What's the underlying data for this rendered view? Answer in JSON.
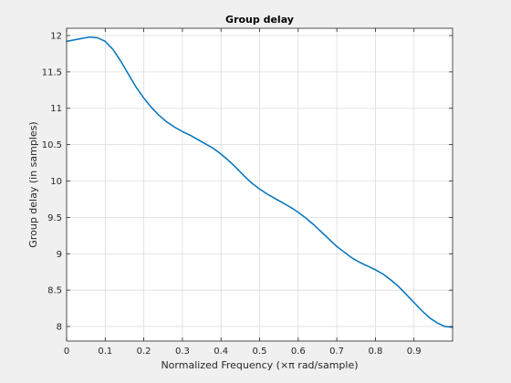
{
  "chart_data": {
    "type": "line",
    "title": "Group delay",
    "xlabel_prefix": "Normalized Frequency  (",
    "xlabel_symbol": "×π",
    "xlabel_suffix": " rad/sample)",
    "ylabel": "Group delay (in samples)",
    "xlim": [
      0,
      1
    ],
    "ylim": [
      7.8,
      12.1
    ],
    "xticks": [
      0,
      0.1,
      0.2,
      0.3,
      0.4,
      0.5,
      0.6,
      0.7,
      0.8,
      0.9
    ],
    "xtick_labels": [
      "0",
      "0.1",
      "0.2",
      "0.3",
      "0.4",
      "0.5",
      "0.6",
      "0.7",
      "0.8",
      "0.9"
    ],
    "yticks": [
      8,
      8.5,
      9,
      9.5,
      10,
      10.5,
      11,
      11.5,
      12
    ],
    "ytick_labels": [
      "8",
      "8.5",
      "9",
      "9.5",
      "10",
      "10.5",
      "11",
      "11.5",
      "12"
    ],
    "grid": true,
    "line_color": "#0072bd",
    "series": [
      {
        "x": [
          0,
          0.02,
          0.04,
          0.06,
          0.08,
          0.1,
          0.12,
          0.14,
          0.16,
          0.18,
          0.2,
          0.22,
          0.24,
          0.26,
          0.28,
          0.3,
          0.32,
          0.34,
          0.36,
          0.38,
          0.4,
          0.42,
          0.44,
          0.46,
          0.48,
          0.5,
          0.52,
          0.54,
          0.56,
          0.58,
          0.6,
          0.62,
          0.64,
          0.66,
          0.68,
          0.7,
          0.72,
          0.74,
          0.76,
          0.78,
          0.8,
          0.82,
          0.84,
          0.86,
          0.88,
          0.9,
          0.92,
          0.94,
          0.96,
          0.98,
          1.0
        ],
        "values": [
          11.92,
          11.94,
          11.96,
          11.98,
          11.97,
          11.92,
          11.81,
          11.65,
          11.47,
          11.29,
          11.14,
          11.01,
          10.9,
          10.81,
          10.74,
          10.68,
          10.63,
          10.57,
          10.51,
          10.45,
          10.37,
          10.28,
          10.18,
          10.07,
          9.97,
          9.89,
          9.82,
          9.76,
          9.7,
          9.64,
          9.57,
          9.49,
          9.4,
          9.3,
          9.2,
          9.1,
          9.02,
          8.94,
          8.88,
          8.83,
          8.78,
          8.72,
          8.64,
          8.55,
          8.44,
          8.33,
          8.22,
          8.12,
          8.05,
          8.0,
          7.99
        ]
      }
    ]
  }
}
